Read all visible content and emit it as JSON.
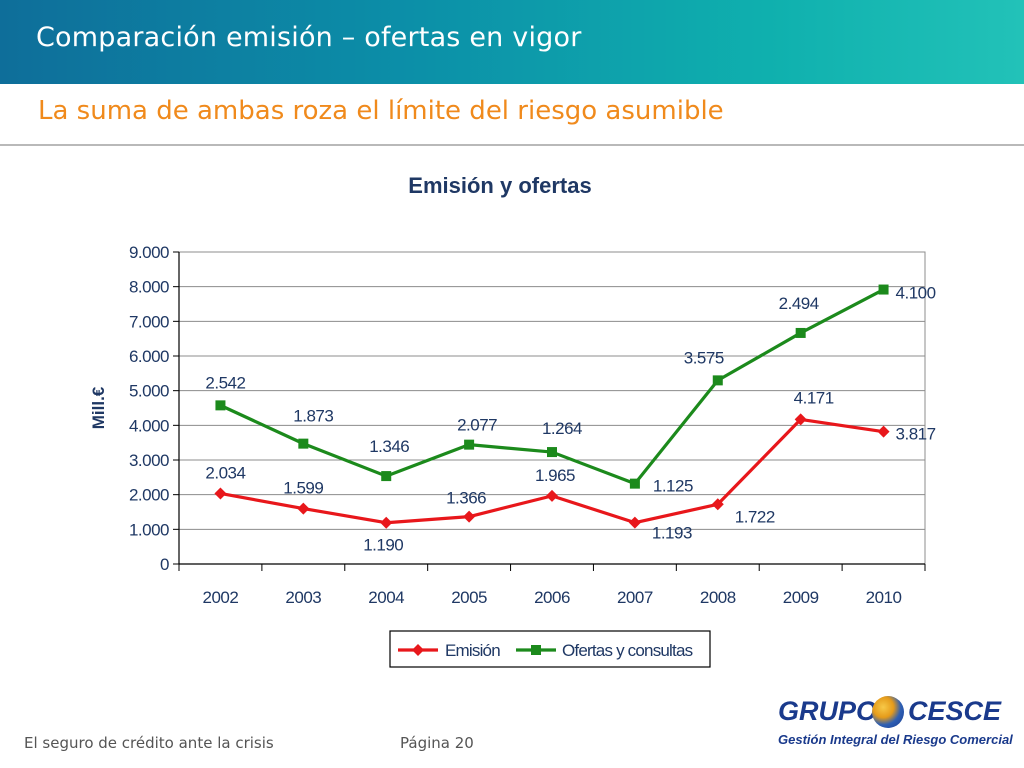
{
  "header": {
    "title": "Comparación emisión – ofertas en vigor",
    "subtitle": "La suma de ambas roza el límite del riesgo asumible"
  },
  "footer": {
    "left_text": "El seguro de crédito ante la crisis",
    "page_text": "Página 20"
  },
  "logo": {
    "word1": "GRUPO",
    "word2": "CESCE",
    "tagline": "Gestión Integral del Riesgo Comercial"
  },
  "colors": {
    "emision": "#e8171b",
    "ofertas": "#1c8a1c",
    "label": "#1f3864"
  },
  "chart_data": {
    "type": "line",
    "title": "Emisión y ofertas",
    "ylabel": "Mill.€",
    "xlabel": "",
    "categories": [
      "2002",
      "2003",
      "2004",
      "2005",
      "2006",
      "2007",
      "2008",
      "2009",
      "2010"
    ],
    "ylim": [
      0,
      9000
    ],
    "yticks": [
      0,
      1000,
      2000,
      3000,
      4000,
      5000,
      6000,
      7000,
      8000,
      9000
    ],
    "ytick_labels": [
      "0",
      "1.000",
      "2.000",
      "3.000",
      "4.000",
      "5.000",
      "6.000",
      "7.000",
      "8.000",
      "9.000"
    ],
    "grid": true,
    "legend_position": "bottom",
    "series": [
      {
        "name": "Emisión",
        "marker": "diamond",
        "values": [
          2034,
          1599,
          1190,
          1366,
          1965,
          1193,
          1722,
          4171,
          3817
        ],
        "labels": [
          "2.034",
          "1.599",
          "1.190",
          "1.366",
          "1.965",
          "1.193",
          "1.722",
          "4.171",
          "3.817"
        ]
      },
      {
        "name": "Ofertas y consultas",
        "marker": "square",
        "values": [
          4576,
          3472,
          2536,
          3443,
          3229,
          2318,
          5297,
          6665,
          7917
        ],
        "labels": [
          "2.542",
          "1.873",
          "1.346",
          "2.077",
          "1.264",
          "1.125",
          "3.575",
          "2.494",
          "4.100"
        ]
      }
    ]
  }
}
